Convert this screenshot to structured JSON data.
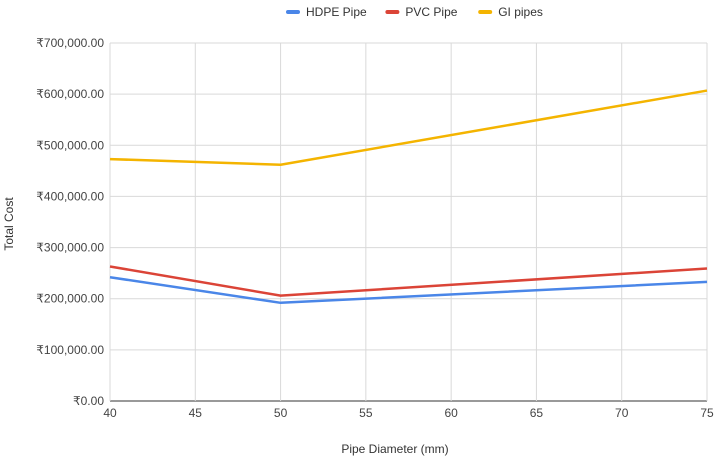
{
  "chart_data": {
    "type": "line",
    "title": "",
    "xlabel": "Pipe Diameter (mm)",
    "ylabel": "Total Cost",
    "x": [
      40,
      50,
      75
    ],
    "xlim": [
      40,
      75
    ],
    "xticks": [
      "40",
      "45",
      "50",
      "55",
      "60",
      "65",
      "70",
      "75"
    ],
    "ylim": [
      0,
      700000
    ],
    "yticks": [
      "₹0.00",
      "₹100,000.00",
      "₹200,000.00",
      "₹300,000.00",
      "₹400,000.00",
      "₹500,000.00",
      "₹600,000.00",
      "₹700,000.00"
    ],
    "grid": true,
    "legend_position": "top-center",
    "series": [
      {
        "name": "HDPE Pipe",
        "color": "#4a86e8",
        "values": [
          242000,
          192000,
          233000
        ]
      },
      {
        "name": "PVC Pipe",
        "color": "#db4437",
        "values": [
          263000,
          206000,
          259000
        ]
      },
      {
        "name": "GI pipes",
        "color": "#f4b400",
        "values": [
          473000,
          462000,
          607000
        ]
      }
    ]
  }
}
